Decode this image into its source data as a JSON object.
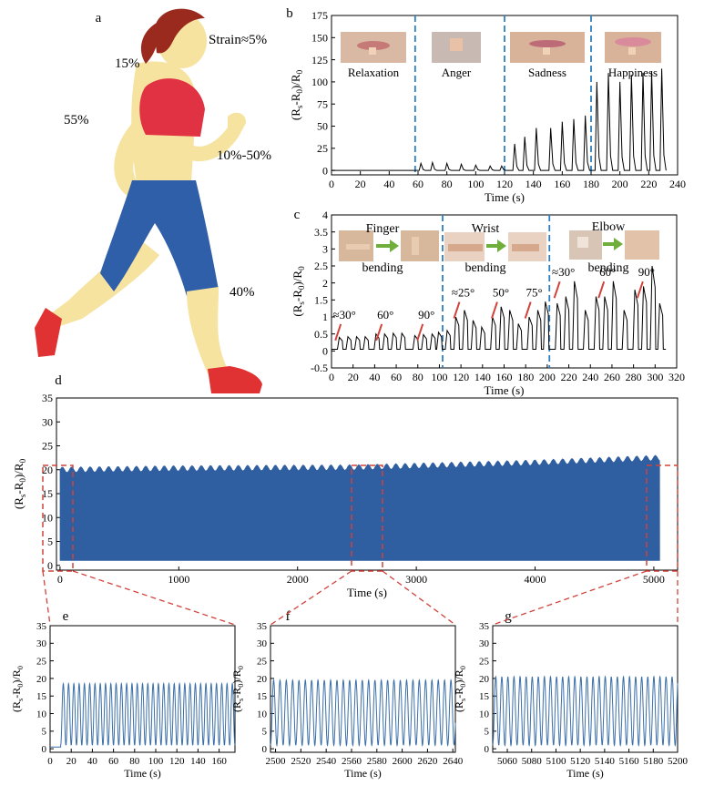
{
  "figure": {
    "panel_letters": [
      "a",
      "b",
      "c",
      "d",
      "e",
      "f",
      "g"
    ]
  },
  "panel_a": {
    "strain_labels": [
      "Strain≈5%",
      "15%",
      "55%",
      "10%-50%",
      "40%"
    ]
  },
  "chart_data": [
    {
      "id": "b",
      "type": "line",
      "xlabel": "Time (s)",
      "ylabel": "(Rs-R0)/R0",
      "xlim": [
        0,
        240
      ],
      "ylim": [
        -5,
        175
      ],
      "xticks": [
        0,
        20,
        40,
        60,
        80,
        100,
        120,
        140,
        160,
        180,
        200,
        220,
        240
      ],
      "yticks": [
        0,
        25,
        50,
        75,
        100,
        125,
        150,
        175
      ],
      "segment_labels": [
        "Relaxation",
        "Anger",
        "Sadness",
        "Happiness"
      ],
      "dividers_x": [
        58,
        120,
        180
      ],
      "baseline": 0,
      "peaks": [
        {
          "x": 62,
          "y": 8
        },
        {
          "x": 70,
          "y": 9
        },
        {
          "x": 80,
          "y": 8
        },
        {
          "x": 90,
          "y": 7
        },
        {
          "x": 100,
          "y": 6
        },
        {
          "x": 110,
          "y": 5
        },
        {
          "x": 118,
          "y": 5
        },
        {
          "x": 127,
          "y": 30
        },
        {
          "x": 134,
          "y": 38
        },
        {
          "x": 142,
          "y": 48
        },
        {
          "x": 152,
          "y": 48
        },
        {
          "x": 160,
          "y": 55
        },
        {
          "x": 168,
          "y": 58
        },
        {
          "x": 176,
          "y": 62
        },
        {
          "x": 184,
          "y": 100
        },
        {
          "x": 192,
          "y": 110
        },
        {
          "x": 200,
          "y": 100
        },
        {
          "x": 208,
          "y": 108
        },
        {
          "x": 216,
          "y": 110
        },
        {
          "x": 222,
          "y": 112
        },
        {
          "x": 229,
          "y": 115
        }
      ]
    },
    {
      "id": "c",
      "type": "line",
      "xlabel": "Time (s)",
      "ylabel": "(Rs-R0)/R0",
      "xlim": [
        0,
        320
      ],
      "ylim": [
        -0.5,
        4.0
      ],
      "xticks": [
        0,
        20,
        40,
        60,
        80,
        100,
        120,
        140,
        160,
        180,
        200,
        220,
        240,
        260,
        280,
        300,
        320
      ],
      "yticks": [
        -0.5,
        0.0,
        0.5,
        1.0,
        1.5,
        2.0,
        2.5,
        3.0,
        3.5,
        4.0
      ],
      "dividers_x": [
        103,
        202
      ],
      "segment_labels": [
        {
          "top": "Finger",
          "bottom": "bending"
        },
        {
          "top": "Wrist",
          "bottom": "bending"
        },
        {
          "top": "Elbow",
          "bottom": "bending"
        }
      ],
      "angle_labels": [
        {
          "text": "≈30°",
          "x": 12,
          "y": 0.95
        },
        {
          "text": "60°",
          "x": 50,
          "y": 0.95
        },
        {
          "text": "90°",
          "x": 88,
          "y": 0.95
        },
        {
          "text": "≈25°",
          "x": 122,
          "y": 1.6
        },
        {
          "text": "50°",
          "x": 157,
          "y": 1.6
        },
        {
          "text": "75°",
          "x": 188,
          "y": 1.6
        },
        {
          "text": "≈30°",
          "x": 215,
          "y": 2.2
        },
        {
          "text": "60°",
          "x": 256,
          "y": 2.2
        },
        {
          "text": "90°",
          "x": 292,
          "y": 2.2
        }
      ],
      "peaks": [
        {
          "x": 8,
          "y": 0.4
        },
        {
          "x": 16,
          "y": 0.42
        },
        {
          "x": 24,
          "y": 0.42
        },
        {
          "x": 32,
          "y": 0.42
        },
        {
          "x": 42,
          "y": 0.5
        },
        {
          "x": 50,
          "y": 0.5
        },
        {
          "x": 58,
          "y": 0.52
        },
        {
          "x": 66,
          "y": 0.52
        },
        {
          "x": 78,
          "y": 0.45
        },
        {
          "x": 86,
          "y": 0.48
        },
        {
          "x": 94,
          "y": 0.5
        },
        {
          "x": 100,
          "y": 0.55
        },
        {
          "x": 108,
          "y": 0.6
        },
        {
          "x": 116,
          "y": 1.0
        },
        {
          "x": 124,
          "y": 1.2
        },
        {
          "x": 132,
          "y": 0.9
        },
        {
          "x": 140,
          "y": 0.7
        },
        {
          "x": 150,
          "y": 1.0
        },
        {
          "x": 158,
          "y": 1.3
        },
        {
          "x": 166,
          "y": 1.2
        },
        {
          "x": 174,
          "y": 0.8
        },
        {
          "x": 184,
          "y": 1.0
        },
        {
          "x": 192,
          "y": 1.2
        },
        {
          "x": 199,
          "y": 1.45
        },
        {
          "x": 210,
          "y": 1.4
        },
        {
          "x": 218,
          "y": 1.6
        },
        {
          "x": 226,
          "y": 2.05
        },
        {
          "x": 236,
          "y": 1.2
        },
        {
          "x": 246,
          "y": 1.6
        },
        {
          "x": 254,
          "y": 1.6
        },
        {
          "x": 262,
          "y": 2.05
        },
        {
          "x": 272,
          "y": 1.2
        },
        {
          "x": 282,
          "y": 1.8
        },
        {
          "x": 290,
          "y": 1.9
        },
        {
          "x": 298,
          "y": 2.5
        },
        {
          "x": 305,
          "y": 1.4
        }
      ]
    },
    {
      "id": "d",
      "type": "area",
      "xlabel": "Time (s)",
      "ylabel": "(Rs-R0)/R0",
      "xlim": [
        -30,
        5200
      ],
      "ylim": [
        -1,
        35
      ],
      "xticks": [
        0,
        1000,
        2000,
        3000,
        4000,
        5000
      ],
      "yticks": [
        0,
        5,
        10,
        15,
        20,
        25,
        30,
        35
      ],
      "envelope": {
        "x": [
          0,
          1000,
          2500,
          4000,
          5050
        ],
        "upper": [
          20,
          20.3,
          20.5,
          21.5,
          22.5
        ],
        "lower": 1
      },
      "zoom_windows": [
        [
          0,
          175
        ],
        [
          2500,
          2640
        ],
        [
          5050,
          5200
        ]
      ]
    },
    {
      "id": "e",
      "type": "line",
      "xlabel": "Time (s)",
      "ylabel": "(Rs-R0)/R0",
      "xlim": [
        0,
        175
      ],
      "ylim": [
        -1,
        35
      ],
      "xticks": [
        0,
        20,
        40,
        60,
        80,
        100,
        120,
        140,
        160
      ],
      "yticks": [
        0,
        5,
        10,
        15,
        20,
        25,
        30,
        35
      ],
      "oscillation": {
        "start": 10,
        "end": 175,
        "period": 5,
        "min": 1,
        "max": 18.5
      }
    },
    {
      "id": "f",
      "type": "line",
      "xlabel": "Time (s)",
      "ylabel": "(Rs-R0)/R0",
      "xlim": [
        2496,
        2642
      ],
      "ylim": [
        -1,
        35
      ],
      "xticks": [
        2500,
        2520,
        2540,
        2560,
        2580,
        2600,
        2620,
        2640
      ],
      "yticks": [
        0,
        5,
        10,
        15,
        20,
        25,
        30,
        35
      ],
      "oscillation": {
        "start": 2496,
        "end": 2642,
        "period": 5,
        "min": 1,
        "max": 19.5
      }
    },
    {
      "id": "g",
      "type": "line",
      "xlabel": "Time (s)",
      "ylabel": "(Rs-R0)/R0",
      "xlim": [
        5048,
        5200
      ],
      "ylim": [
        -1,
        35
      ],
      "xticks": [
        5060,
        5080,
        5100,
        5120,
        5140,
        5160,
        5180,
        5200
      ],
      "yticks": [
        0,
        5,
        10,
        15,
        20,
        25,
        30,
        35
      ],
      "oscillation": {
        "start": 5048,
        "end": 5200,
        "period": 5,
        "min": 1,
        "max": 20.5
      }
    }
  ]
}
